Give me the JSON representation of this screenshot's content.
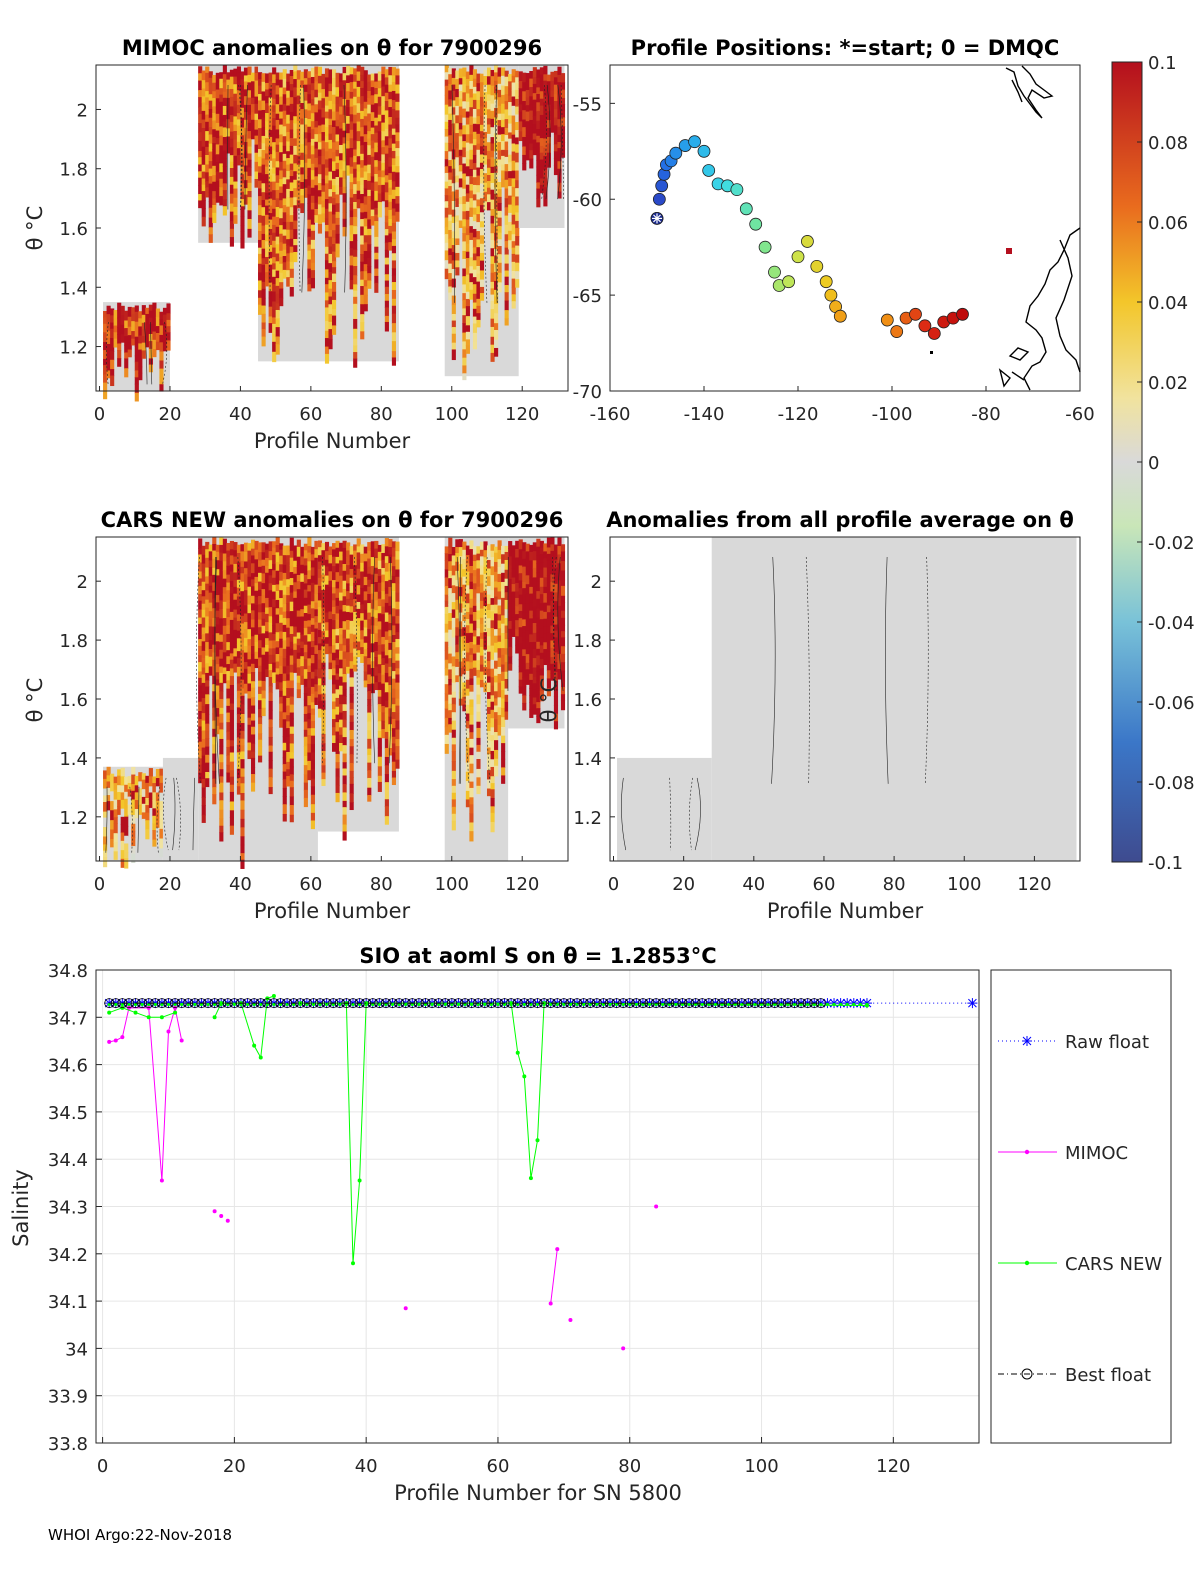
{
  "footer": "WHOI Argo:22-Nov-2018",
  "chart_data": [
    {
      "id": "mimoc",
      "type": "heatmap",
      "title": "MIMOC anomalies on θ  for 7900296",
      "xlabel": "Profile Number",
      "ylabel": "θ °C",
      "xlim": [
        -1,
        133
      ],
      "ylim": [
        1.05,
        2.15
      ],
      "xticks": [
        0,
        20,
        40,
        60,
        80,
        100,
        120
      ],
      "yticks": [
        1.2,
        1.4,
        1.6,
        1.8,
        2.0
      ],
      "ytick_labels": [
        "1.2",
        "1.4",
        "1.6",
        "1.8",
        "2"
      ],
      "segments": [
        {
          "x": [
            1,
            20
          ],
          "ymax": 1.35,
          "ymin": 1.05,
          "level": 0.07
        },
        {
          "x": [
            28,
            45
          ],
          "ymax": 2.15,
          "ymin": 1.55,
          "level": 0.06
        },
        {
          "x": [
            45,
            85
          ],
          "ymax": 2.15,
          "ymin": 1.15,
          "level": 0.05
        },
        {
          "x": [
            98,
            119
          ],
          "ymax": 2.15,
          "ymin": 1.1,
          "level": 0.03
        },
        {
          "x": [
            119,
            132
          ],
          "ymax": 2.15,
          "ymin": 1.6,
          "level": 0.09
        }
      ]
    },
    {
      "id": "positions",
      "type": "scatter",
      "title": "Profile Positions: *=start; 0 = DMQC",
      "xlim": [
        -160,
        -60
      ],
      "ylim": [
        -70,
        -53
      ],
      "xticks": [
        -160,
        -140,
        -120,
        -100,
        -80,
        -60
      ],
      "yticks": [
        -55,
        -60,
        -65,
        -70
      ],
      "start": {
        "lon": -150,
        "lat": -61
      },
      "points": [
        [
          -150,
          -61
        ],
        [
          -149.5,
          -60
        ],
        [
          -149,
          -59.3
        ],
        [
          -148.5,
          -58.7
        ],
        [
          -148,
          -58.2
        ],
        [
          -147,
          -58
        ],
        [
          -146,
          -57.6
        ],
        [
          -144,
          -57.2
        ],
        [
          -142,
          -57.0
        ],
        [
          -140,
          -57.5
        ],
        [
          -139,
          -58.5
        ],
        [
          -137,
          -59.2
        ],
        [
          -135,
          -59.3
        ],
        [
          -133,
          -59.5
        ],
        [
          -131,
          -60.5
        ],
        [
          -129,
          -61.3
        ],
        [
          -127,
          -62.5
        ],
        [
          -125,
          -63.8
        ],
        [
          -124,
          -64.5
        ],
        [
          -122,
          -64.3
        ],
        [
          -120,
          -63.0
        ],
        [
          -118,
          -62.2
        ],
        [
          -116,
          -63.5
        ],
        [
          -114,
          -64.3
        ],
        [
          -113,
          -65.0
        ],
        [
          -112,
          -65.6
        ],
        [
          -111,
          -66.1
        ],
        [
          -101,
          -66.3
        ],
        [
          -99,
          -66.9
        ],
        [
          -97,
          -66.2
        ],
        [
          -95,
          -66.0
        ],
        [
          -93,
          -66.6
        ],
        [
          -91,
          -67.0
        ],
        [
          -89,
          -66.4
        ],
        [
          -87,
          -66.2
        ],
        [
          -85,
          -66.0
        ]
      ],
      "colorbar": {
        "min": -0.1,
        "max": 0.1,
        "tick_labels": [
          "0.1",
          "0.08",
          "0.06",
          "0.04",
          "0.02",
          "0",
          "-0.02",
          "-0.04",
          "-0.06",
          "-0.08",
          "-0.1"
        ]
      }
    },
    {
      "id": "cars",
      "type": "heatmap",
      "title": "CARS NEW anomalies on θ for 7900296",
      "xlabel": "Profile Number",
      "ylabel": "θ °C",
      "xlim": [
        -1,
        133
      ],
      "ylim": [
        1.05,
        2.15
      ],
      "xticks": [
        0,
        20,
        40,
        60,
        80,
        100,
        120
      ],
      "yticks": [
        1.2,
        1.4,
        1.6,
        1.8,
        2.0
      ],
      "ytick_labels": [
        "1.2",
        "1.4",
        "1.6",
        "1.8",
        "2"
      ],
      "segments": [
        {
          "x": [
            1,
            18
          ],
          "ymax": 1.37,
          "ymin": 1.05,
          "level": 0.02
        },
        {
          "x": [
            18,
            28
          ],
          "ymax": 1.4,
          "ymin": 1.05,
          "level": 0.0
        },
        {
          "x": [
            28,
            62
          ],
          "ymax": 2.15,
          "ymin": 1.05,
          "level": 0.06
        },
        {
          "x": [
            62,
            85
          ],
          "ymax": 2.15,
          "ymin": 1.15,
          "level": 0.05
        },
        {
          "x": [
            98,
            116
          ],
          "ymax": 2.15,
          "ymin": 1.05,
          "level": 0.03
        },
        {
          "x": [
            116,
            132
          ],
          "ymax": 2.15,
          "ymin": 1.5,
          "level": 0.09
        }
      ]
    },
    {
      "id": "allavg",
      "type": "heatmap",
      "title": "Anomalies from all profile average on θ",
      "xlabel": "Profile Number",
      "ylabel": "θ °C",
      "xlim": [
        -1,
        133
      ],
      "ylim": [
        1.05,
        2.15
      ],
      "xticks": [
        0,
        20,
        40,
        60,
        80,
        100,
        120
      ],
      "yticks": [
        1.2,
        1.4,
        1.6,
        1.8,
        2.0
      ],
      "ytick_labels": [
        "1.2",
        "1.4",
        "1.6",
        "1.8",
        "2"
      ],
      "segments": [
        {
          "x": [
            1,
            28
          ],
          "ymax": 1.4,
          "ymin": 1.05,
          "level": 0.0
        },
        {
          "x": [
            28,
            132
          ],
          "ymax": 2.15,
          "ymin": 1.05,
          "level": 0.0
        }
      ]
    },
    {
      "id": "salinity",
      "type": "line",
      "title": "SIO at aoml S on θ = 1.2853°C",
      "xlabel": "Profile Number for SN 5800",
      "ylabel": "Salinity",
      "xlim": [
        -1,
        133
      ],
      "ylim": [
        33.8,
        34.8
      ],
      "xticks": [
        0,
        20,
        40,
        60,
        80,
        100,
        120
      ],
      "yticks": [
        33.8,
        33.9,
        34.0,
        34.1,
        34.2,
        34.3,
        34.4,
        34.5,
        34.6,
        34.7,
        34.8
      ],
      "ytick_labels": [
        "33.8",
        "33.9",
        "34",
        "34.1",
        "34.2",
        "34.3",
        "34.4",
        "34.5",
        "34.6",
        "34.7",
        "34.8"
      ],
      "series": [
        {
          "name": "Raw float",
          "color": "#0000ff",
          "marker": "star",
          "style": "dotted",
          "x_start": 1,
          "x_end": 116,
          "value": 34.73,
          "extra": [
            [
              132,
              34.73
            ]
          ]
        },
        {
          "name": "MIMOC",
          "color": "#ff00ff",
          "marker": "dot",
          "style": "solid",
          "lines": [
            [
              [
                1,
                34.648
              ],
              [
                2,
                34.651
              ],
              [
                3,
                34.658
              ],
              [
                4,
                34.72
              ],
              [
                7,
                34.72
              ],
              [
                9,
                34.355
              ],
              [
                10,
                34.67
              ],
              [
                11,
                34.72
              ],
              [
                12,
                34.651
              ]
            ],
            [
              [
                68,
                34.095
              ],
              [
                69,
                34.21
              ]
            ]
          ],
          "points": [
            [
              17,
              34.29
            ],
            [
              18,
              34.28
            ],
            [
              19,
              34.27
            ],
            [
              46,
              34.085
            ],
            [
              71,
              34.06
            ],
            [
              79,
              34.0
            ],
            [
              84,
              34.3
            ]
          ]
        },
        {
          "name": "CARS NEW",
          "color": "#00ff00",
          "marker": "dot",
          "style": "solid",
          "lines": [
            [
              [
                1,
                34.71
              ],
              [
                3,
                34.72
              ],
              [
                5,
                34.71
              ],
              [
                7,
                34.7
              ],
              [
                9,
                34.7
              ],
              [
                11,
                34.71
              ]
            ],
            [
              [
                17,
                34.7
              ],
              [
                18,
                34.73
              ],
              [
                21,
                34.73
              ],
              [
                23,
                34.64
              ],
              [
                24,
                34.615
              ],
              [
                25,
                34.74
              ],
              [
                26,
                34.745
              ]
            ],
            [
              [
                30,
                34.73
              ],
              [
                37,
                34.73
              ],
              [
                38,
                34.18
              ],
              [
                39,
                34.355
              ],
              [
                40,
                34.73
              ],
              [
                62,
                34.73
              ],
              [
                63,
                34.625
              ],
              [
                64,
                34.575
              ],
              [
                65,
                34.36
              ],
              [
                66,
                34.44
              ],
              [
                67,
                34.73
              ],
              [
                116,
                34.725
              ]
            ]
          ],
          "points": []
        },
        {
          "name": "Best float",
          "color": "#000000",
          "marker": "circle",
          "style": "dashdot",
          "x_start": 1,
          "x_end": 109,
          "value": 34.73,
          "extra": []
        }
      ]
    }
  ]
}
